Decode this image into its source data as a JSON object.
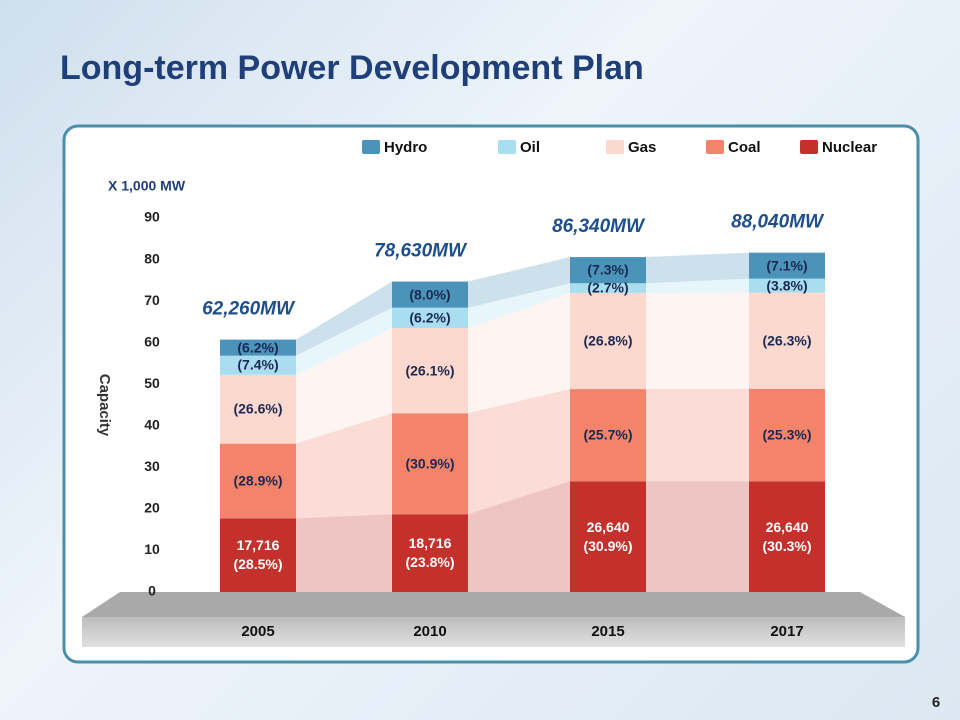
{
  "title": "Long-term Power Development Plan",
  "page_number": "6",
  "chart_data": {
    "type": "stacked_bar",
    "unit_label": "X 1,000 MW",
    "ylabel": "Capacity",
    "categories": [
      "2005",
      "2010",
      "2015",
      "2017"
    ],
    "totals": [
      "62,260MW",
      "78,630MW",
      "86,340MW",
      "88,040MW"
    ],
    "ylim": [
      0,
      90
    ],
    "yticks": [
      0,
      10,
      20,
      30,
      40,
      50,
      60,
      70,
      80,
      90
    ],
    "series": [
      {
        "name": "Nuclear",
        "color": "#c4302b",
        "values": [
          17.716,
          18.716,
          26.64,
          26.64
        ],
        "value_labels": [
          "17,716\n(28.5%)",
          "18,716\n(23.8%)",
          "26,640\n(30.9%)",
          "26,640\n(30.3%)"
        ]
      },
      {
        "name": "Coal",
        "color": "#f4836b",
        "values": [
          17.99,
          24.3,
          22.19,
          22.27
        ],
        "value_labels": [
          "(28.9%)",
          "(30.9%)",
          "(25.7%)",
          "(25.3%)"
        ]
      },
      {
        "name": "Gas",
        "color": "#fcd9cf",
        "values": [
          16.56,
          20.52,
          23.14,
          23.15
        ],
        "value_labels": [
          "(26.6%)",
          "(26.1%)",
          "(26.8%)",
          "(26.3%)"
        ]
      },
      {
        "name": "Oil",
        "color": "#a8def0",
        "values": [
          4.61,
          4.88,
          2.33,
          3.35
        ],
        "value_labels": [
          "(7.4%)",
          "(6.2%)",
          "(2.7%)",
          "(3.8%)"
        ]
      },
      {
        "name": "Hydro",
        "color": "#4b93b9",
        "values": [
          3.86,
          6.29,
          6.3,
          6.25
        ],
        "value_labels": [
          "(6.2%)",
          "(8.0%)",
          "(7.3%)",
          "(7.1%)"
        ]
      }
    ]
  }
}
